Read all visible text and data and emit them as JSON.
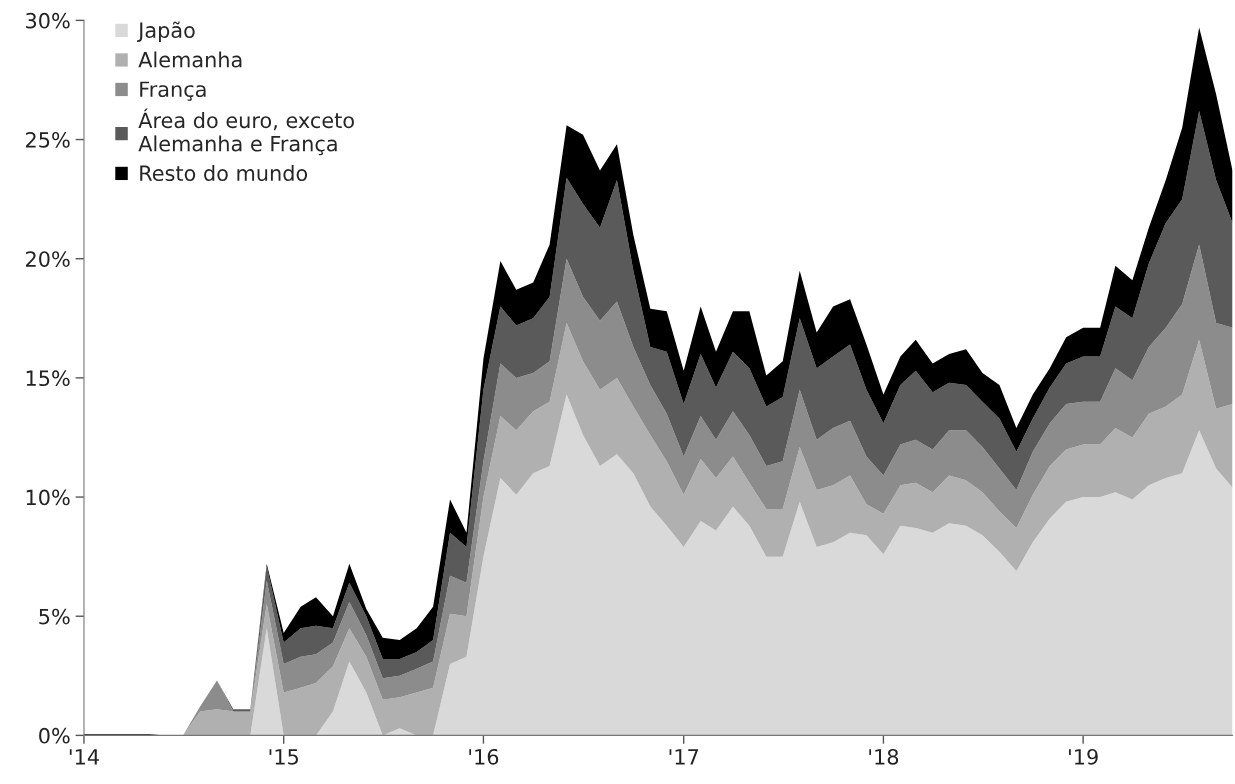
{
  "chart_data": {
    "type": "area",
    "stacked": true,
    "x": [
      "2014-01",
      "2014-02",
      "2014-03",
      "2014-04",
      "2014-05",
      "2014-06",
      "2014-07",
      "2014-08",
      "2014-09",
      "2014-10",
      "2014-11",
      "2014-12",
      "2015-01",
      "2015-02",
      "2015-03",
      "2015-04",
      "2015-05",
      "2015-06",
      "2015-07",
      "2015-08",
      "2015-09",
      "2015-10",
      "2015-11",
      "2015-12",
      "2016-01",
      "2016-02",
      "2016-03",
      "2016-04",
      "2016-05",
      "2016-06",
      "2016-07",
      "2016-08",
      "2016-09",
      "2016-10",
      "2016-11",
      "2016-12",
      "2017-01",
      "2017-02",
      "2017-03",
      "2017-04",
      "2017-05",
      "2017-06",
      "2017-07",
      "2017-08",
      "2017-09",
      "2017-10",
      "2017-11",
      "2017-12",
      "2018-01",
      "2018-02",
      "2018-03",
      "2018-04",
      "2018-05",
      "2018-06",
      "2018-07",
      "2018-08",
      "2018-09",
      "2018-10",
      "2018-11",
      "2018-12",
      "2019-01",
      "2019-02",
      "2019-03",
      "2019-04",
      "2019-05",
      "2019-06",
      "2019-07",
      "2019-08",
      "2019-09",
      "2019-10"
    ],
    "series": [
      {
        "name": "Japão",
        "color": "#d9d9d9",
        "values": [
          0,
          0,
          0,
          0,
          0,
          0,
          0,
          0,
          0,
          0,
          0,
          4.5,
          0,
          0,
          0,
          1.0,
          3.1,
          1.8,
          0,
          0.3,
          0,
          0,
          3.0,
          3.3,
          7.5,
          10.8,
          10.1,
          11.0,
          11.3,
          14.3,
          12.6,
          11.3,
          11.8,
          11.0,
          9.6,
          8.8,
          7.9,
          9.0,
          8.6,
          9.6,
          8.8,
          7.5,
          7.5,
          9.8,
          7.9,
          8.1,
          8.5,
          8.4,
          7.6,
          8.8,
          8.7,
          8.5,
          8.9,
          8.8,
          8.4,
          7.7,
          6.9,
          8.1,
          9.1,
          9.8,
          10.0,
          10.0,
          10.2,
          9.9,
          10.5,
          10.8,
          11.0,
          12.8,
          11.2,
          10.4
        ]
      },
      {
        "name": "Alemanha",
        "color": "#b0b0b0",
        "values": [
          0,
          0,
          0,
          0,
          0,
          0,
          0,
          1.0,
          1.1,
          1.0,
          1.0,
          1.0,
          1.8,
          2.0,
          2.2,
          1.9,
          1.4,
          1.5,
          1.5,
          1.3,
          1.8,
          2.0,
          2.1,
          1.7,
          2.5,
          2.6,
          2.7,
          2.6,
          2.7,
          3.0,
          3.1,
          3.2,
          3.2,
          2.8,
          3.0,
          2.7,
          2.2,
          2.6,
          2.2,
          2.1,
          1.8,
          2.0,
          2.0,
          2.3,
          2.4,
          2.4,
          2.4,
          1.3,
          1.7,
          1.7,
          1.9,
          1.7,
          2.0,
          1.9,
          1.8,
          1.7,
          1.8,
          2.0,
          2.2,
          2.2,
          2.2,
          2.2,
          2.7,
          2.6,
          3.0,
          3.0,
          3.3,
          3.8,
          2.5,
          3.5
        ]
      },
      {
        "name": "França",
        "color": "#8c8c8c",
        "values": [
          0,
          0,
          0,
          0,
          0,
          0,
          0,
          0.2,
          1.2,
          0,
          0,
          1.0,
          1.2,
          1.3,
          1.2,
          1.0,
          1.1,
          0.9,
          0.9,
          0.9,
          1.0,
          1.1,
          1.6,
          1.4,
          1.5,
          2.2,
          2.2,
          1.6,
          1.7,
          2.7,
          2.7,
          2.9,
          3.2,
          2.5,
          2.1,
          2.0,
          1.6,
          1.8,
          1.6,
          1.9,
          2.0,
          1.8,
          2.0,
          2.4,
          2.1,
          2.4,
          2.3,
          2.0,
          1.6,
          1.7,
          1.8,
          1.8,
          1.9,
          2.1,
          1.9,
          1.8,
          1.6,
          1.8,
          1.8,
          1.9,
          1.8,
          1.8,
          2.5,
          2.4,
          2.8,
          3.3,
          3.8,
          4.0,
          3.6,
          3.2
        ]
      },
      {
        "name": "Área do euro, exceto\nAlemanha e França",
        "color": "#5a5a5a",
        "values": [
          0,
          0,
          0,
          0,
          0,
          0,
          0,
          0,
          0,
          0.1,
          0.1,
          0.6,
          0.9,
          1.2,
          1.2,
          0.6,
          0.8,
          0.8,
          0.8,
          0.7,
          0.7,
          0.9,
          1.8,
          1.5,
          3.0,
          2.4,
          2.2,
          2.3,
          2.7,
          3.4,
          3.9,
          3.9,
          5.1,
          3.2,
          1.6,
          2.6,
          2.2,
          2.6,
          2.2,
          2.5,
          2.8,
          2.5,
          2.7,
          3.0,
          3.0,
          3.0,
          3.2,
          2.8,
          2.2,
          2.5,
          2.9,
          2.4,
          2.0,
          1.9,
          1.9,
          2.1,
          1.6,
          1.4,
          1.5,
          1.7,
          1.9,
          1.9,
          2.6,
          2.6,
          3.5,
          4.4,
          4.4,
          5.6,
          6.0,
          4.4
        ]
      },
      {
        "name": "Resto do mundo",
        "color": "#000000",
        "values": [
          0.05,
          0.05,
          0.05,
          0.05,
          0.05,
          0,
          0,
          0,
          0,
          0,
          0,
          0.1,
          0.4,
          0.9,
          1.2,
          0.5,
          0.8,
          0.3,
          0.9,
          0.8,
          1.0,
          1.4,
          1.4,
          0.6,
          1.3,
          1.9,
          1.5,
          1.5,
          2.2,
          2.2,
          2.9,
          2.4,
          1.5,
          1.5,
          1.6,
          1.7,
          1.4,
          2.0,
          1.5,
          1.7,
          2.4,
          1.3,
          1.5,
          2.0,
          1.5,
          2.1,
          1.9,
          1.9,
          1.2,
          1.2,
          1.3,
          1.2,
          1.2,
          1.5,
          1.2,
          1.4,
          1.0,
          1.0,
          0.8,
          1.1,
          1.2,
          1.2,
          1.7,
          1.6,
          1.5,
          1.8,
          3.0,
          3.5,
          3.6,
          2.2
        ]
      }
    ],
    "xlim": [
      "2014-01",
      "2019-10"
    ],
    "xticks": [
      {
        "value": "2014-01",
        "label": "'14"
      },
      {
        "value": "2015-01",
        "label": "'15"
      },
      {
        "value": "2016-01",
        "label": "'16"
      },
      {
        "value": "2017-01",
        "label": "'17"
      },
      {
        "value": "2018-01",
        "label": "'18"
      },
      {
        "value": "2019-01",
        "label": "'19"
      }
    ],
    "ylim": [
      0,
      30
    ],
    "yticks": [
      {
        "value": 0,
        "label": "0%"
      },
      {
        "value": 5,
        "label": "5%"
      },
      {
        "value": 10,
        "label": "10%"
      },
      {
        "value": 15,
        "label": "15%"
      },
      {
        "value": 20,
        "label": "20%"
      },
      {
        "value": 25,
        "label": "25%"
      },
      {
        "value": 30,
        "label": "30%"
      }
    ],
    "grid": false,
    "legend": "top left"
  }
}
